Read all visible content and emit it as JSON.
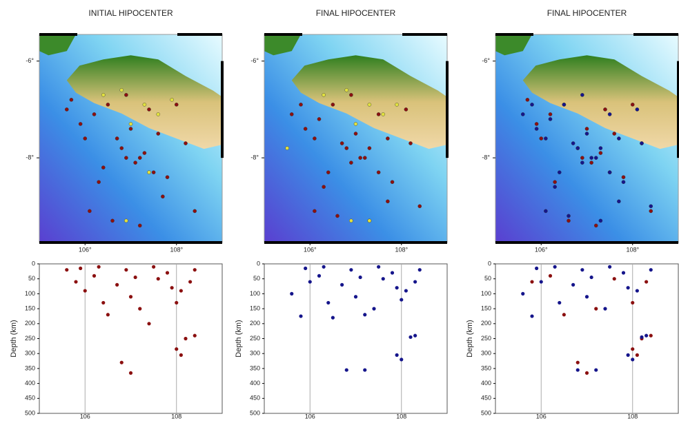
{
  "panels": [
    {
      "title": "INITIAL HIPOCENTER",
      "map": {
        "type": "scatter",
        "xlim": [
          105,
          109
        ],
        "ylim": [
          -9.75,
          -5.45
        ],
        "xticks": [
          {
            "value": 106,
            "label": "106°"
          },
          {
            "value": 108,
            "label": "108°"
          }
        ],
        "yticks": [
          {
            "value": -6,
            "label": "-6°"
          },
          {
            "value": -8,
            "label": "-8°"
          }
        ],
        "series": [
          {
            "color": "#8b1010",
            "x": [
              105.7,
              105.9,
              106.0,
              106.2,
              106.3,
              106.5,
              106.6,
              106.8,
              106.9,
              107.0,
              107.1,
              107.2,
              107.3,
              107.4,
              107.5,
              107.6,
              107.8,
              108.0,
              108.2,
              108.4,
              106.1,
              106.4,
              106.9,
              107.2,
              107.7,
              105.6,
              106.7
            ],
            "values": [
              -6.8,
              -7.3,
              -7.6,
              -7.1,
              -8.5,
              -6.9,
              -9.3,
              -7.8,
              -8.0,
              -7.4,
              -8.1,
              -9.4,
              -7.9,
              -7.0,
              -8.3,
              -7.5,
              -8.4,
              -6.9,
              -7.7,
              -9.1,
              -9.1,
              -8.2,
              -6.7,
              -8.0,
              -8.8,
              -7.0,
              -7.6
            ]
          },
          {
            "color": "#e0e040",
            "x": [
              106.4,
              106.8,
              107.0,
              107.3,
              107.6,
              107.9,
              106.9,
              107.4
            ],
            "values": [
              -6.7,
              -6.6,
              -7.3,
              -6.9,
              -7.1,
              -6.8,
              -9.3,
              -8.3
            ]
          }
        ]
      },
      "depth": {
        "type": "scatter",
        "y_label": "Depth (km)",
        "xlim": [
          105,
          109
        ],
        "ylim": [
          0,
          500
        ],
        "xticks": [
          106,
          108
        ],
        "yticks": [
          0,
          50,
          100,
          150,
          200,
          250,
          300,
          350,
          400,
          450,
          500
        ],
        "series": [
          {
            "color": "#8b1010",
            "x": [
              106.8,
              107.0,
              108.0,
              108.1,
              108.2,
              108.4,
              105.6,
              105.8,
              106.0,
              106.2,
              106.4,
              106.5,
              106.7,
              106.9,
              107.0,
              107.2,
              107.4,
              107.6,
              107.8,
              108.0,
              108.1,
              108.3,
              108.4,
              105.9,
              106.3,
              107.1,
              107.5,
              107.9
            ],
            "values": [
              330,
              365,
              285,
              305,
              250,
              240,
              20,
              60,
              90,
              40,
              130,
              170,
              70,
              20,
              110,
              150,
              200,
              50,
              30,
              130,
              90,
              60,
              20,
              15,
              10,
              45,
              10,
              80
            ]
          }
        ]
      }
    },
    {
      "title": "FINAL HIPOCENTER",
      "map": {
        "type": "scatter",
        "xlim": [
          105,
          109
        ],
        "ylim": [
          -9.75,
          -5.45
        ],
        "xticks": [
          {
            "value": 106,
            "label": "106°"
          },
          {
            "value": 108,
            "label": "108°"
          }
        ],
        "yticks": [
          {
            "value": -6,
            "label": "-6°"
          },
          {
            "value": -8,
            "label": "-8°"
          }
        ],
        "series": [
          {
            "color": "#8b1010",
            "x": [
              105.8,
              105.9,
              106.1,
              106.2,
              106.3,
              106.5,
              106.6,
              106.8,
              106.9,
              107.0,
              107.1,
              107.3,
              107.3,
              107.5,
              107.5,
              107.7,
              107.8,
              108.1,
              108.2,
              108.4,
              106.1,
              106.4,
              106.9,
              107.2,
              107.7,
              105.6,
              106.7
            ],
            "values": [
              -6.9,
              -7.4,
              -7.6,
              -7.2,
              -8.6,
              -6.9,
              -9.2,
              -7.8,
              -8.1,
              -7.5,
              -8.0,
              -9.3,
              -7.8,
              -7.1,
              -8.3,
              -7.6,
              -8.5,
              -7.0,
              -7.7,
              -9.0,
              -9.1,
              -8.3,
              -6.7,
              -8.0,
              -8.9,
              -7.1,
              -7.7
            ]
          },
          {
            "color": "#e0e040",
            "x": [
              106.3,
              106.8,
              107.0,
              107.3,
              107.6,
              107.9,
              106.9,
              107.3,
              105.5
            ],
            "values": [
              -6.7,
              -6.6,
              -7.3,
              -6.9,
              -7.1,
              -6.9,
              -9.3,
              -9.3,
              -7.8
            ]
          }
        ]
      },
      "depth": {
        "type": "scatter",
        "y_label": "Depth (km)",
        "xlim": [
          105,
          109
        ],
        "ylim": [
          0,
          500
        ],
        "xticks": [
          106,
          108
        ],
        "yticks": [
          0,
          50,
          100,
          150,
          200,
          250,
          300,
          350,
          400,
          450,
          500
        ],
        "series": [
          {
            "color": "#15158b",
            "x": [
              106.8,
              107.2,
              107.9,
              108.0,
              108.2,
              108.3,
              105.8,
              105.6,
              106.0,
              106.2,
              106.4,
              106.5,
              106.7,
              106.9,
              107.0,
              107.2,
              107.4,
              107.6,
              107.8,
              108.0,
              108.1,
              108.3,
              108.4,
              105.9,
              106.3,
              107.1,
              107.5,
              107.9
            ],
            "values": [
              355,
              355,
              305,
              320,
              245,
              240,
              175,
              100,
              60,
              40,
              130,
              180,
              70,
              20,
              110,
              170,
              150,
              50,
              30,
              120,
              90,
              60,
              20,
              15,
              10,
              45,
              10,
              80
            ]
          }
        ]
      }
    },
    {
      "title": "FINAL HIPOCENTER",
      "map": {
        "type": "scatter",
        "xlim": [
          105,
          109
        ],
        "ylim": [
          -9.75,
          -5.45
        ],
        "xticks": [
          {
            "value": 106,
            "label": "106°"
          },
          {
            "value": 108,
            "label": "108°"
          }
        ],
        "yticks": [
          {
            "value": -6,
            "label": "-6°"
          },
          {
            "value": -8,
            "label": "-8°"
          }
        ],
        "series": [
          {
            "color": "#8b1010",
            "x": [
              105.7,
              105.9,
              106.0,
              106.2,
              106.3,
              106.5,
              106.6,
              106.8,
              106.9,
              107.0,
              107.1,
              107.2,
              107.3,
              107.4,
              107.5,
              107.6,
              107.8,
              108.0,
              108.2,
              108.4
            ],
            "values": [
              -6.8,
              -7.3,
              -7.6,
              -7.1,
              -8.5,
              -6.9,
              -9.3,
              -7.8,
              -8.0,
              -7.4,
              -8.1,
              -9.4,
              -7.9,
              -7.0,
              -8.3,
              -7.5,
              -8.4,
              -6.9,
              -7.7,
              -9.1
            ]
          },
          {
            "color": "#15158b",
            "x": [
              105.8,
              105.9,
              106.1,
              106.2,
              106.3,
              106.5,
              106.6,
              106.8,
              106.9,
              107.0,
              107.1,
              107.3,
              107.3,
              107.5,
              107.5,
              107.7,
              107.8,
              108.1,
              108.2,
              108.4,
              106.1,
              106.4,
              106.9,
              107.2,
              107.7,
              105.6,
              106.7
            ],
            "values": [
              -6.9,
              -7.4,
              -7.6,
              -7.2,
              -8.6,
              -6.9,
              -9.2,
              -7.8,
              -8.1,
              -7.5,
              -8.0,
              -9.3,
              -7.8,
              -7.1,
              -8.3,
              -7.6,
              -8.5,
              -7.0,
              -7.7,
              -9.0,
              -9.1,
              -8.3,
              -6.7,
              -8.0,
              -8.9,
              -7.1,
              -7.7
            ]
          }
        ]
      },
      "depth": {
        "type": "scatter",
        "y_label": "Depth (km)",
        "xlim": [
          105,
          109
        ],
        "ylim": [
          0,
          500
        ],
        "xticks": [
          106,
          108
        ],
        "yticks": [
          0,
          50,
          100,
          150,
          200,
          250,
          300,
          350,
          400,
          450,
          500
        ],
        "series": [
          {
            "color": "#8b1010",
            "x": [
              106.8,
              107.0,
              108.0,
              108.1,
              108.2,
              108.4,
              105.8,
              106.2,
              106.5,
              107.2,
              107.6,
              108.0,
              108.3
            ],
            "values": [
              330,
              365,
              285,
              305,
              250,
              240,
              60,
              40,
              170,
              150,
              50,
              130,
              60
            ]
          },
          {
            "color": "#15158b",
            "x": [
              106.8,
              107.2,
              107.9,
              108.0,
              108.2,
              108.3,
              105.8,
              105.6,
              106.0,
              106.4,
              106.7,
              106.9,
              107.0,
              107.4,
              107.8,
              108.1,
              108.4,
              105.9,
              106.3,
              107.1,
              107.5,
              107.9
            ],
            "values": [
              355,
              355,
              305,
              320,
              245,
              240,
              175,
              100,
              60,
              130,
              70,
              20,
              110,
              150,
              30,
              90,
              20,
              15,
              10,
              45,
              10,
              80
            ]
          }
        ]
      }
    }
  ]
}
